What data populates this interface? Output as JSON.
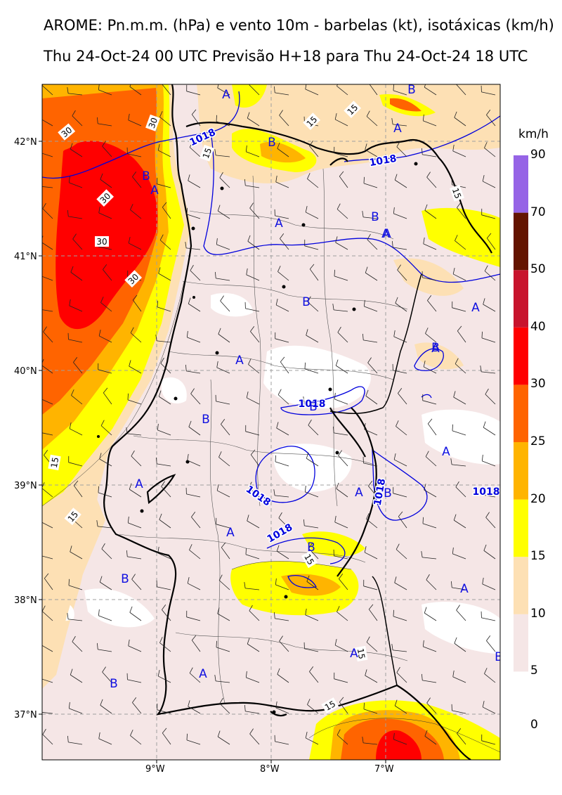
{
  "titles": {
    "line1": "AROME: Pn.m.m. (hPa) e vento 10m - barbelas (kt), isotáxicas (km/h)",
    "line2": "Thu 24-Oct-24 00 UTC Previsão H+18 para Thu 24-Oct-24 18 UTC"
  },
  "colorbar": {
    "unit": "km/h",
    "bins": [
      {
        "from": 0,
        "to": 5,
        "label": "0",
        "color": "#ffffff"
      },
      {
        "from": 5,
        "to": 10,
        "label": "5",
        "color": "#f5e6e6"
      },
      {
        "from": 10,
        "to": 15,
        "label": "10",
        "color": "#fde0b4"
      },
      {
        "from": 15,
        "to": 20,
        "label": "15",
        "color": "#ffff00"
      },
      {
        "from": 20,
        "to": 25,
        "label": "20",
        "color": "#ffb400"
      },
      {
        "from": 25,
        "to": 30,
        "label": "25",
        "color": "#ff6400"
      },
      {
        "from": 30,
        "to": 40,
        "label": "30",
        "color": "#ff0000"
      },
      {
        "from": 40,
        "to": 50,
        "label": "40",
        "color": "#c8142d"
      },
      {
        "from": 50,
        "to": 70,
        "label": "50",
        "color": "#641400"
      },
      {
        "from": 70,
        "to": 90,
        "label": "70",
        "color": "#9664e6"
      },
      {
        "label": "90"
      }
    ]
  },
  "axes": {
    "lat_labels": [
      "42°N",
      "41°N",
      "40°N",
      "39°N",
      "38°N",
      "37°N"
    ],
    "lon_labels": [
      "9°W",
      "8°W",
      "7°W"
    ]
  },
  "isobars": {
    "label": "1018"
  },
  "isotach_labels": [
    "30",
    "30",
    "30",
    "30",
    "30",
    "15",
    "15",
    "15",
    "15",
    "15",
    "15",
    "15",
    "15",
    "15"
  ],
  "pressure_centers": [
    "A",
    "A",
    "A",
    "A",
    "A",
    "A",
    "A",
    "A",
    "A",
    "A",
    "A",
    "A",
    "A",
    "A",
    "A",
    "A",
    "B",
    "B",
    "B",
    "B",
    "B",
    "B",
    "B",
    "B",
    "B",
    "B",
    "B",
    "B",
    "B"
  ]
}
